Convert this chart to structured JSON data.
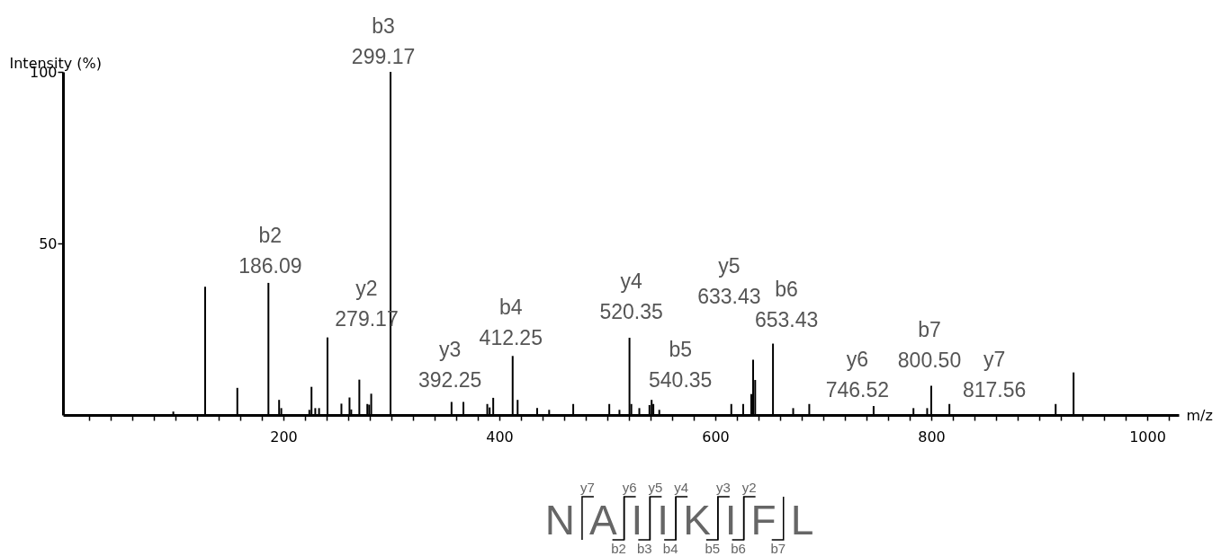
{
  "chart_data": {
    "type": "bar",
    "xlabel": "m/z",
    "ylabel": "Intensity (%)",
    "color": "#000000",
    "x": [
      98,
      127.5,
      157.3,
      186.1,
      196,
      198,
      224,
      226,
      229.5,
      233,
      240.8,
      253.7,
      261.2,
      262.8,
      270.3,
      277.7,
      279.4,
      281.3,
      299.2,
      355.7,
      366.7,
      388.8,
      391,
      394.3,
      412.3,
      416.9,
      435,
      446.1,
      468.4,
      501.8,
      511.2,
      520.5,
      522.2,
      529.6,
      539,
      541,
      542.6,
      548.1,
      614.8,
      625.8,
      633.3,
      635,
      636.9,
      653.4,
      672.1,
      687,
      746.6,
      783.5,
      796.2,
      800,
      816.8,
      915.2,
      931.8
    ],
    "values": [
      1,
      37.4,
      7.9,
      38.5,
      4.4,
      2,
      1.5,
      8.2,
      2,
      2,
      22.6,
      3.3,
      5.1,
      1.6,
      10.3,
      3.2,
      3,
      6.2,
      100,
      3.8,
      3.8,
      3.2,
      2.2,
      5,
      17.2,
      4.4,
      2,
      1.5,
      3.2,
      3.2,
      1.5,
      22.5,
      3.2,
      2,
      2.9,
      4.4,
      3.2,
      1.5,
      3.2,
      3.2,
      6.1,
      16.1,
      10.2,
      20.8,
      2,
      3.2,
      2.6,
      2,
      2,
      8.5,
      3.2,
      3.2,
      12.4
    ],
    "xlim": [
      0,
      1025
    ],
    "xticks": [
      {
        "value": 20,
        "label": null
      },
      {
        "value": 40,
        "label": null
      },
      {
        "value": 60,
        "label": null
      },
      {
        "value": 80,
        "label": null
      },
      {
        "value": 100,
        "label": null
      },
      {
        "value": 120,
        "label": null
      },
      {
        "value": 140,
        "label": null
      },
      {
        "value": 160,
        "label": null
      },
      {
        "value": 180,
        "label": null
      },
      200,
      {
        "value": 220,
        "label": null
      },
      {
        "value": 240,
        "label": null
      },
      {
        "value": 260,
        "label": null
      },
      {
        "value": 280,
        "label": null
      },
      {
        "value": 300,
        "label": null
      },
      {
        "value": 320,
        "label": null
      },
      {
        "value": 340,
        "label": null
      },
      {
        "value": 360,
        "label": null
      },
      {
        "value": 380,
        "label": null
      },
      400,
      {
        "value": 420,
        "label": null
      },
      {
        "value": 440,
        "label": null
      },
      {
        "value": 460,
        "label": null
      },
      {
        "value": 480,
        "label": null
      },
      {
        "value": 500,
        "label": null
      },
      {
        "value": 520,
        "label": null
      },
      {
        "value": 540,
        "label": null
      },
      {
        "value": 560,
        "label": null
      },
      {
        "value": 580,
        "label": null
      },
      600,
      {
        "value": 620,
        "label": null
      },
      {
        "value": 640,
        "label": null
      },
      {
        "value": 660,
        "label": null
      },
      {
        "value": 680,
        "label": null
      },
      {
        "value": 700,
        "label": null
      },
      {
        "value": 720,
        "label": null
      },
      {
        "value": 740,
        "label": null
      },
      {
        "value": 760,
        "label": null
      },
      {
        "value": 780,
        "label": null
      },
      800,
      {
        "value": 820,
        "label": null
      },
      {
        "value": 840,
        "label": null
      },
      {
        "value": 860,
        "label": null
      },
      {
        "value": 880,
        "label": null
      },
      {
        "value": 900,
        "label": null
      },
      {
        "value": 920,
        "label": null
      },
      {
        "value": 940,
        "label": null
      },
      {
        "value": 960,
        "label": null
      },
      {
        "value": 980,
        "label": null
      },
      1000,
      {
        "value": 1020,
        "label": null
      }
    ],
    "ylim": [
      0,
      100
    ],
    "yticks": [
      50,
      100
    ],
    "annotations": [
      {
        "text": "b2\n186.09",
        "x": 186.1,
        "y": 38.5
      },
      "y2\n279.17",
      {
        "text": "b3\n299.17",
        "x": 299.2,
        "y": 100
      },
      {
        "text": "y3\n392.25",
        "x": 391,
        "y": 2.2
      },
      {
        "text": "b4\n412.25",
        "x": 412.3,
        "y": 17.2
      },
      {
        "text": "y4\n520.35",
        "x": 520.5,
        "y": 22.5
      },
      {
        "text": "b5\n540.35",
        "x": 541,
        "y": 4.4
      },
      "y5\n633.43",
      {
        "text": "b6\n653.43",
        "x": 653.4,
        "y": 20.8
      },
      {
        "text": "y6\n746.52",
        "x": 746.6,
        "y": 2.6
      },
      {
        "text": "b7\n800.50",
        "x": 800,
        "y": 8.5
      },
      {
        "text": "y7\n817.56",
        "x": 816.8,
        "y": 3.2
      },
      "NAIIKIFL",
      "y7 y6 y5 y4 y3 y2",
      "b2 b3 b4 b5 b6 b7"
    ]
  }
}
